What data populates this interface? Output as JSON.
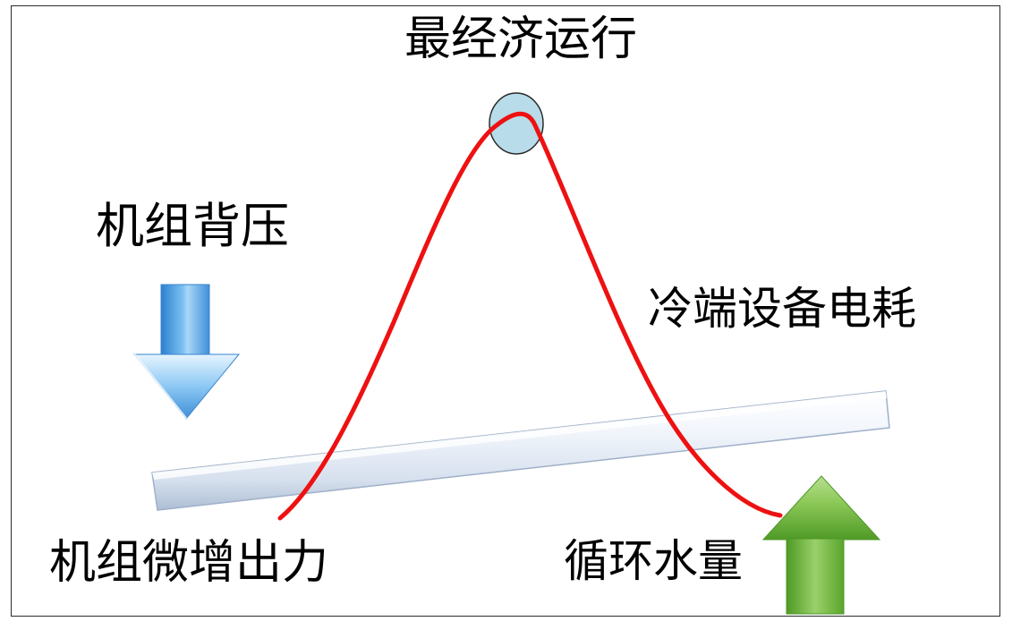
{
  "diagram": {
    "title": "最经济运行",
    "labels": {
      "unit_back_pressure": "机组背压",
      "cold_end_power": "冷端设备电耗",
      "unit_output_increase": "机组微增出力",
      "circulating_water": "循环水量"
    },
    "arrows": {
      "back_pressure_direction": "down",
      "water_flow_direction": "up"
    },
    "colors": {
      "curve": "#ee1111",
      "optimum_marker_fill": "#b8dcea",
      "down_arrow": "#4a9fe0",
      "up_arrow": "#6fb23a",
      "lever_bar": "#e4ebf6"
    }
  }
}
